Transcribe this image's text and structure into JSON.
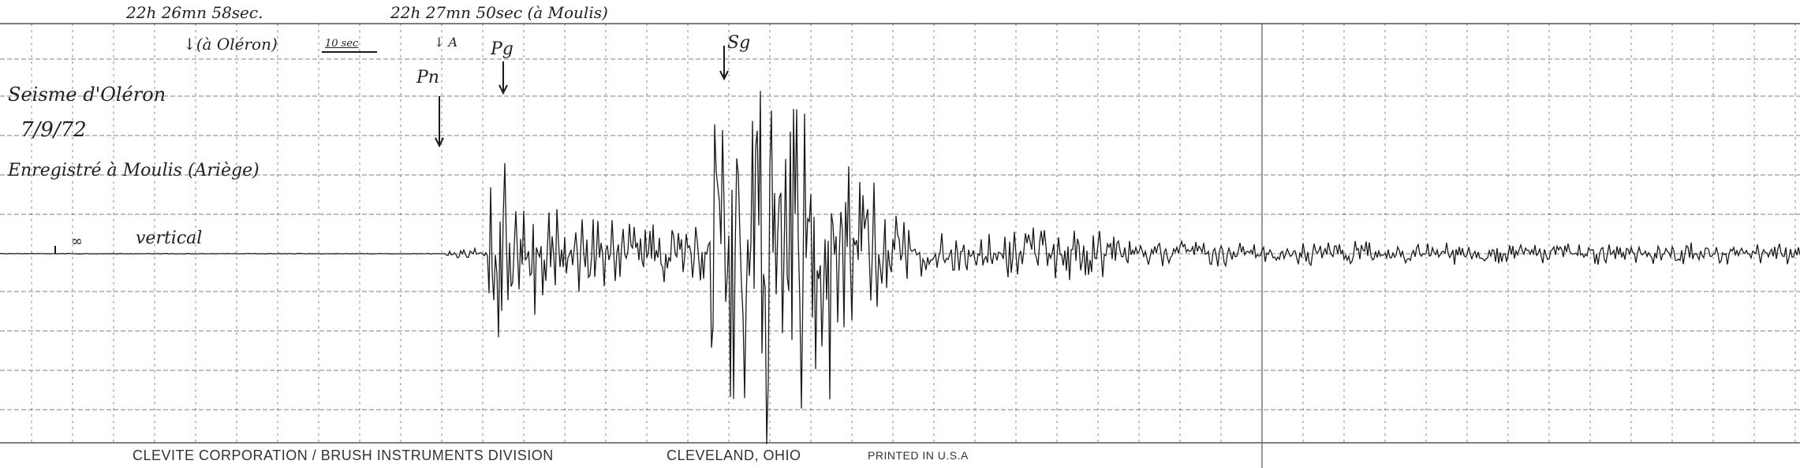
{
  "header": {
    "time_oleron": "22h 26mn 58sec.",
    "oleron_marker": "↓(à Oléron)",
    "scale_bar": "10 sec",
    "time_moulis": "22h 27mn 50sec (à Moulis)",
    "arrival_marker": "↓ A",
    "phase_pn": "Pn",
    "phase_pg": "Pg",
    "phase_sg": "Sg"
  },
  "notes": {
    "title": "Seisme d'Oléron",
    "date": "7/9/72",
    "station": "Enregistré à Moulis (Ariège)",
    "gain": "∞",
    "component": "vertical"
  },
  "footer": {
    "manufacturer": "CLEVITE CORPORATION / BRUSH INSTRUMENTS DIVISION",
    "city": "CLEVELAND, OHIO",
    "printed": "PRINTED IN U.S.A"
  },
  "colors": {
    "ink": "#1a1a1a",
    "grid": "#555555"
  }
}
